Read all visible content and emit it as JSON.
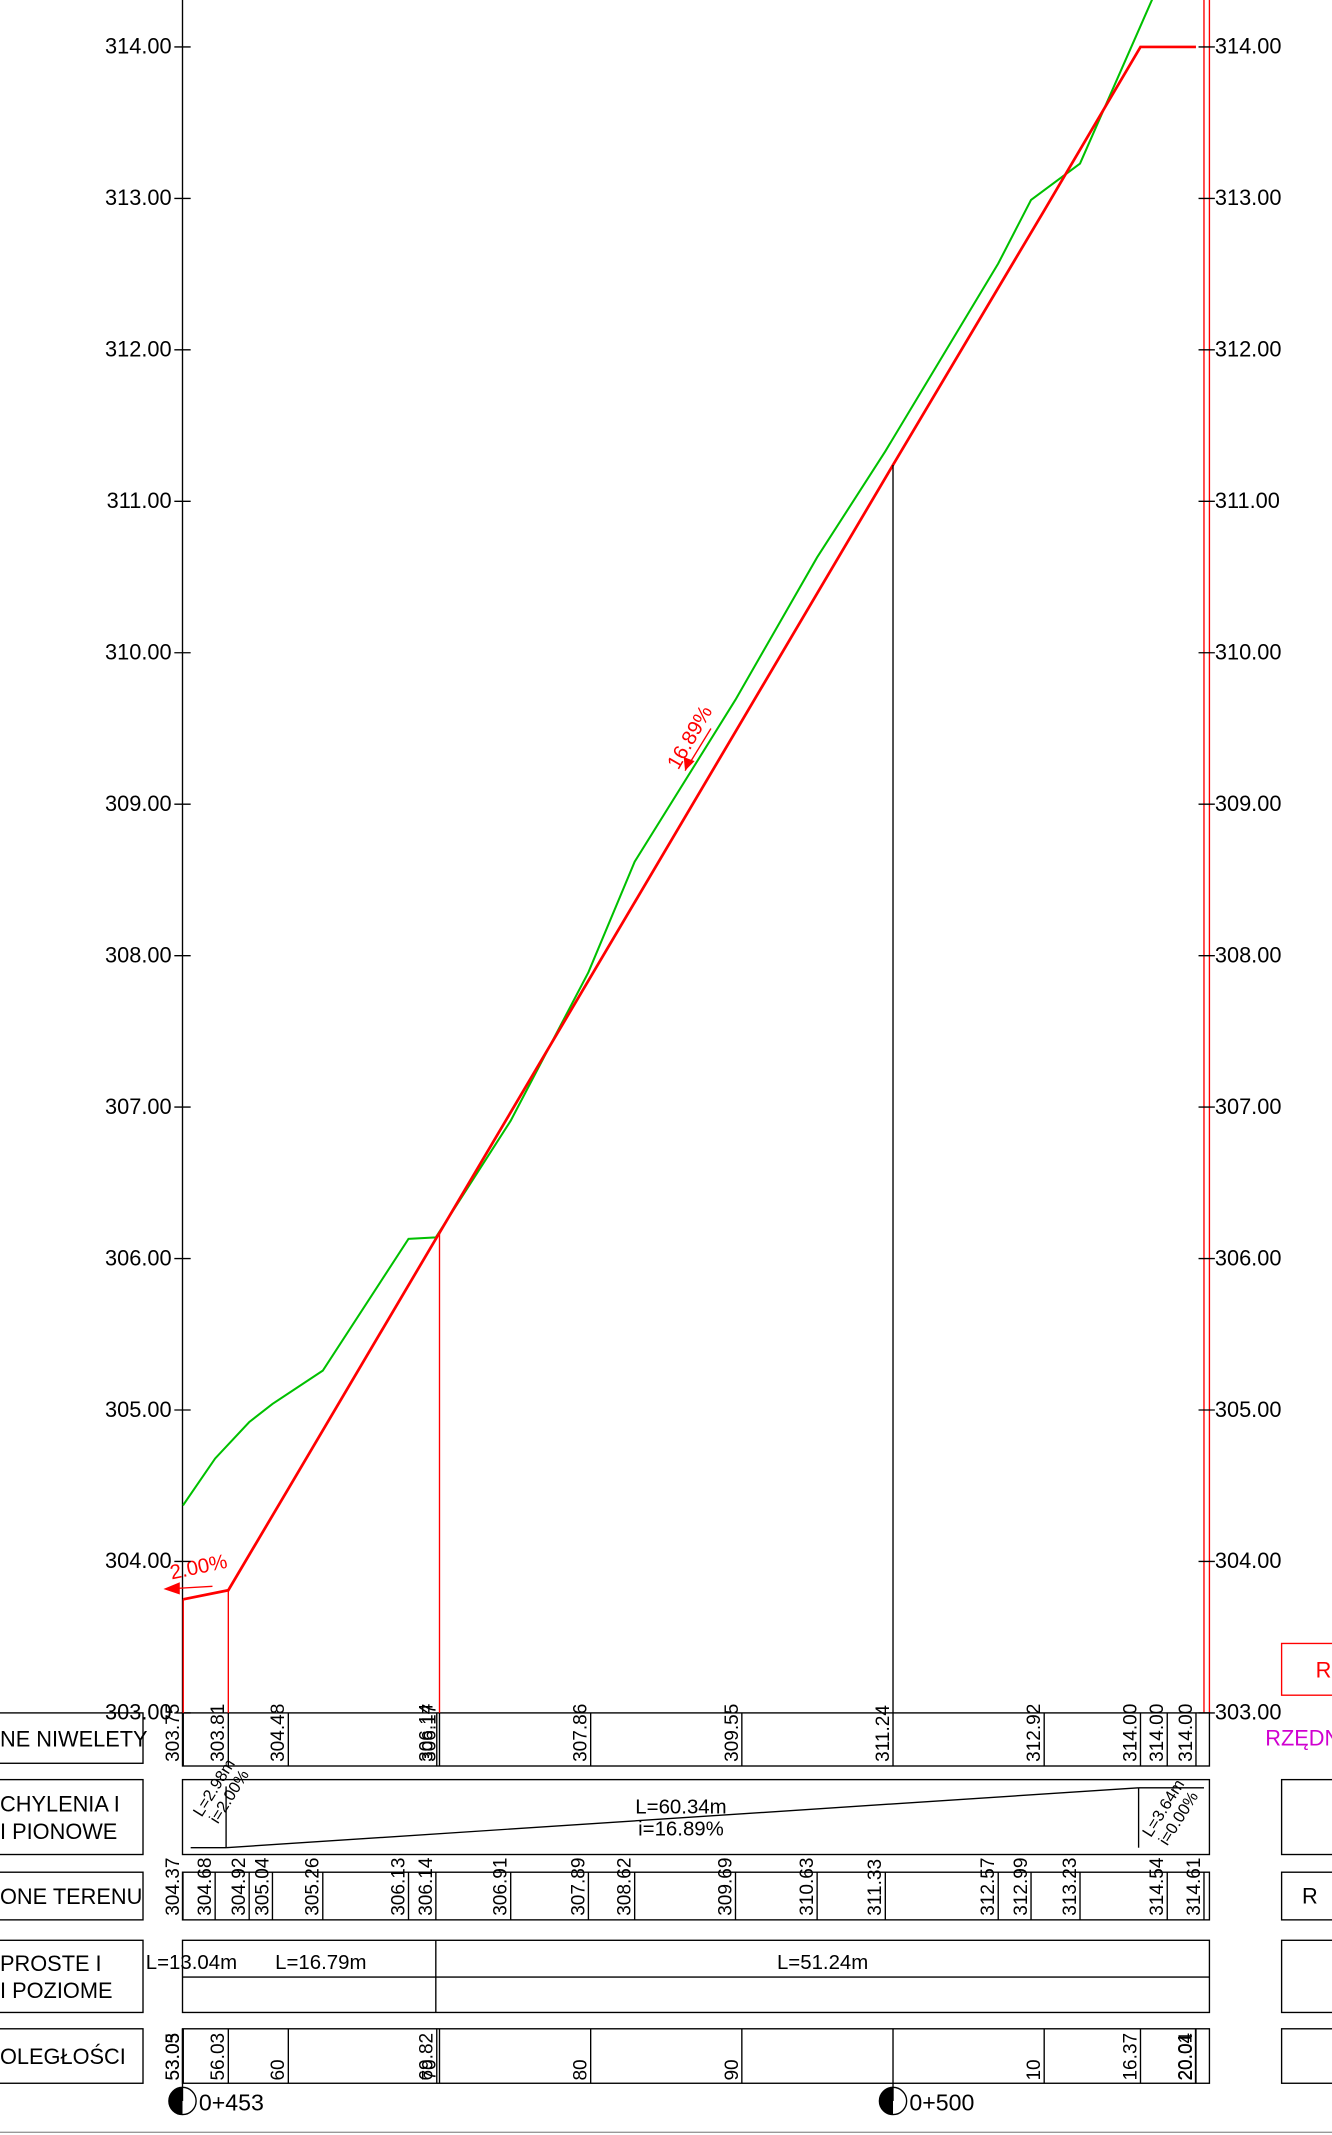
{
  "chart_data": {
    "type": "line",
    "xlim": [
      453,
      520.75
    ],
    "ylim": [
      303,
      314.31
    ],
    "yticks": [
      {
        "value": 303,
        "label": "303.00"
      },
      {
        "value": 304,
        "label": "304.00"
      },
      {
        "value": 305,
        "label": "305.00"
      },
      {
        "value": 306,
        "label": "306.00"
      },
      {
        "value": 307,
        "label": "307.00"
      },
      {
        "value": 308,
        "label": "308.00"
      },
      {
        "value": 309,
        "label": "309.00"
      },
      {
        "value": 310,
        "label": "310.00"
      },
      {
        "value": 311,
        "label": "311.00"
      },
      {
        "value": 312,
        "label": "312.00"
      },
      {
        "value": 313,
        "label": "313.00"
      },
      {
        "value": 314,
        "label": "314.00"
      }
    ],
    "xticks": [
      {
        "value": 453.03,
        "label": "53.03"
      },
      {
        "value": 453.05,
        "label": "53.05"
      },
      {
        "value": 456.03,
        "label": "56.03"
      },
      {
        "value": 460,
        "label": "60"
      },
      {
        "value": 469.82,
        "label": "69.82"
      },
      {
        "value": 470,
        "label": "70"
      },
      {
        "value": 480,
        "label": "80"
      },
      {
        "value": 490,
        "label": "90"
      },
      {
        "value": 510,
        "label": "10"
      },
      {
        "value": 516.37,
        "label": "16.37"
      },
      {
        "value": 520.01,
        "label": "20.01"
      },
      {
        "value": 520.04,
        "label": "20.04"
      }
    ],
    "km_markers": [
      {
        "value": 453,
        "label": "0+453"
      },
      {
        "value": 500,
        "label": "0+500"
      }
    ],
    "series": [
      {
        "color": "#00c000",
        "x": [
          453.03,
          455.16,
          457.41,
          458.95,
          462.28,
          467.95,
          469.76,
          474.71,
          479.85,
          482.91,
          489.58,
          494.98,
          499.49,
          506.96,
          509.13,
          512.37,
          518.14,
          520.57
        ],
        "values": [
          304.37,
          304.68,
          304.92,
          305.04,
          305.26,
          306.13,
          306.14,
          306.91,
          307.89,
          308.62,
          309.69,
          310.63,
          311.33,
          312.57,
          312.99,
          313.23,
          314.54,
          314.61
        ],
        "value_labels": [
          "304.37",
          "304.68",
          "304.92",
          "305.04",
          "305.26",
          "306.13",
          "306.14",
          "306.91",
          "307.89",
          "308.62",
          "309.69",
          "310.63",
          "311.33",
          "312.57",
          "312.99",
          "313.23",
          "314.54",
          "314.61"
        ]
      },
      {
        "color": "#ff0000",
        "x": [
          453.05,
          456.03,
          460,
          469.82,
          470,
          480,
          490,
          500,
          510,
          516.37,
          518.14,
          520.04
        ],
        "values": [
          303.75,
          303.81,
          304.48,
          306.14,
          306.17,
          307.86,
          309.55,
          311.24,
          312.92,
          314.0,
          314.0,
          314.0
        ],
        "value_labels": [
          "303.75",
          "303.81",
          "304.48",
          "306.14",
          "306.17",
          "307.86",
          "309.55",
          "311.24",
          "312.92",
          "314.00",
          "314.00",
          "314.00"
        ]
      }
    ],
    "annotations": [
      "16.89%",
      "2.00%"
    ],
    "grades": [
      {
        "length": "L=2.98m",
        "slope": "i=2.00%"
      },
      {
        "length": "L=60.34m",
        "slope": "i=16.89%"
      },
      {
        "length": "L=3.64m",
        "slope": "i=0.00%"
      }
    ],
    "horizontal": [
      "L=13.04m",
      "L=16.79m",
      "L=51.24m"
    ],
    "row_labels": [
      [
        "NE NIWELETY"
      ],
      [
        "CHYLENIA I",
        "I PIONOWE"
      ],
      [
        "ONE TERENU"
      ],
      [
        "PROSTE I",
        "I POZIOME"
      ],
      [
        "OLEGŁOŚCI"
      ]
    ],
    "right_labels": [
      "RZ",
      "RZĘDNE",
      "R"
    ]
  }
}
